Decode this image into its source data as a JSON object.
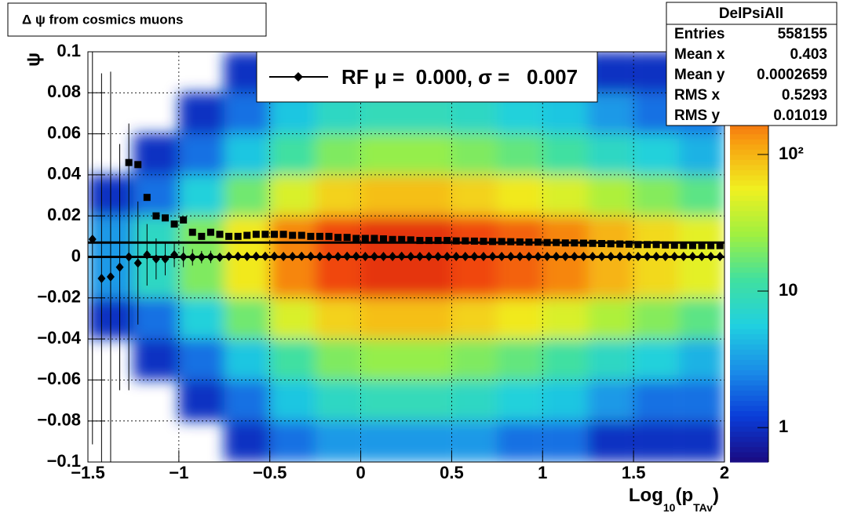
{
  "chart_data": {
    "type": "heatmap",
    "title": "Δ ψ from cosmics muons",
    "y_label": "ψ",
    "x_label": [
      "Log",
      "10",
      "(p",
      "TAv",
      ")"
    ],
    "xlim": [
      -1.5,
      2
    ],
    "ylim": [
      -0.1,
      0.1
    ],
    "xticks": [
      {
        "value": -1.5,
        "label": "−1.5"
      },
      {
        "value": -1,
        "label": "−1"
      },
      {
        "value": -0.5,
        "label": "−0.5"
      },
      0,
      0.5,
      1,
      1.5,
      2
    ],
    "yticks": [
      {
        "value": -0.1,
        "label": "−0.1"
      },
      {
        "value": -0.08,
        "label": "−0.08"
      },
      {
        "value": -0.06,
        "label": "−0.06"
      },
      {
        "value": -0.04,
        "label": "−0.04"
      },
      {
        "value": -0.02,
        "label": "−0.02"
      },
      0,
      0.02,
      0.04,
      0.06,
      0.08,
      0.1
    ],
    "grid": true,
    "zlim": [
      0.56,
      565
    ],
    "zlog": true,
    "zticks": [
      1,
      10,
      {
        "value": 100,
        "label": "10²"
      }
    ],
    "palette": [
      "#1a0a80",
      "#0a3cd8",
      "#1a8ce8",
      "#20d0e0",
      "#40e0a0",
      "#a0f040",
      "#f0f020",
      "#f8a010",
      "#f04010",
      "#b00000"
    ],
    "xbins": [
      -1.5,
      -1.25,
      -1,
      -0.75,
      -0.5,
      -0.25,
      0,
      0.25,
      0.5,
      0.75,
      1,
      1.25,
      1.5,
      1.75,
      2
    ],
    "ybins": [
      -0.1,
      -0.08,
      -0.06,
      -0.04,
      -0.02,
      0,
      0.02,
      0.04,
      0.06,
      0.08,
      0.1
    ],
    "z": [
      [
        0,
        0,
        0,
        1,
        3,
        3,
        1,
        0,
        0,
        0
      ],
      [
        0,
        0,
        1,
        2,
        8,
        8,
        2,
        1,
        0,
        0
      ],
      [
        0,
        1,
        2,
        6,
        20,
        20,
        6,
        2,
        1,
        0
      ],
      [
        1,
        2,
        5,
        18,
        60,
        60,
        18,
        5,
        2,
        1
      ],
      [
        2,
        5,
        12,
        45,
        150,
        150,
        45,
        12,
        5,
        2
      ],
      [
        3,
        8,
        20,
        75,
        250,
        250,
        75,
        20,
        8,
        3
      ],
      [
        3,
        9,
        24,
        90,
        300,
        300,
        90,
        24,
        9,
        3
      ],
      [
        3,
        9,
        24,
        90,
        300,
        300,
        90,
        24,
        9,
        3
      ],
      [
        3,
        8,
        20,
        75,
        250,
        250,
        75,
        20,
        8,
        3
      ],
      [
        2,
        6,
        16,
        60,
        200,
        200,
        60,
        16,
        6,
        2
      ],
      [
        2,
        5,
        12,
        45,
        150,
        150,
        45,
        12,
        5,
        2
      ],
      [
        1,
        3,
        8,
        30,
        100,
        100,
        30,
        8,
        3,
        1
      ],
      [
        1,
        2,
        6,
        21,
        70,
        70,
        21,
        6,
        2,
        1
      ],
      [
        1,
        2,
        4,
        15,
        50,
        50,
        15,
        4,
        2,
        1
      ]
    ],
    "x": [
      -1.475,
      -1.425,
      -1.375,
      -1.325,
      -1.275,
      -1.225,
      -1.175,
      -1.125,
      -1.075,
      -1.025,
      -0.975,
      -0.925,
      -0.875,
      -0.825,
      -0.775,
      -0.725,
      -0.675,
      -0.625,
      -0.575,
      -0.525,
      -0.475,
      -0.425,
      -0.375,
      -0.325,
      -0.275,
      -0.225,
      -0.175,
      -0.125,
      -0.075,
      -0.025,
      0.025,
      0.075,
      0.125,
      0.175,
      0.225,
      0.275,
      0.325,
      0.375,
      0.425,
      0.475,
      0.525,
      0.575,
      0.625,
      0.675,
      0.725,
      0.775,
      0.825,
      0.875,
      0.925,
      0.975,
      1.025,
      1.075,
      1.125,
      1.175,
      1.225,
      1.275,
      1.325,
      1.375,
      1.425,
      1.475,
      1.525,
      1.575,
      1.625,
      1.675,
      1.725,
      1.775,
      1.825,
      1.875,
      1.925,
      1.975
    ],
    "series": [
      {
        "marker": "diamond",
        "color": "#000000",
        "values": [
          0.0086,
          -0.0105,
          -0.0097,
          -0.005,
          0,
          -0.003,
          0.001,
          -0.001,
          -0.001,
          0.001,
          0,
          -0.0002,
          -0.0001,
          0,
          -0.0002,
          0.0003,
          0.0003,
          0.0002,
          0.0003,
          0.0003,
          0.0003,
          0.0002,
          0.0002,
          0.0003,
          0.0003,
          0.0002,
          0.0002,
          0.0002,
          0.0003,
          0.0003,
          0.0002,
          0.0002,
          0.0002,
          0.0002,
          0.0003,
          0.0002,
          0.0002,
          0.0002,
          0.0002,
          0.0002,
          0.0002,
          0.0002,
          0.0002,
          0.0002,
          0.0002,
          0.0002,
          0.0002,
          0.0002,
          0.0002,
          0.0002,
          0.0002,
          0.0002,
          0.0002,
          0.0002,
          0.0002,
          0.0002,
          0.0002,
          0.0002,
          0.0002,
          0.0002,
          0.0002,
          0.0002,
          0.0002,
          0.0002,
          0.0002,
          0.0002,
          0.0002,
          0.0002,
          0.0002,
          0.0002
        ],
        "errors": [
          0.1,
          0.1,
          0.1,
          0.06,
          0.065,
          0.03,
          0.015,
          0.01,
          0.008,
          0.006,
          0.005,
          0.004,
          0.003,
          0.003,
          0.002,
          0.002,
          0.002,
          0.0015,
          0.0015,
          0.001,
          0.0005,
          0.0005,
          0.0005,
          0.0005,
          0.0005,
          0.0005,
          0.0005,
          0.0005,
          0.0005,
          0.0005,
          0.0005,
          0.0005,
          0.0005,
          0.0005,
          0.0005,
          0.0005,
          0.0005,
          0.0005,
          0.0005,
          0.0005,
          0.0005,
          0.0005,
          0.0005,
          0.0005,
          0.0005,
          0.0005,
          0.0005,
          0.0005,
          0.0005,
          0.0005,
          0.0005,
          0.0005,
          0.0005,
          0.0005,
          0.0005,
          0.0005,
          0.0005,
          0.0005,
          0.0005,
          0.0005,
          0.0005,
          0.0005,
          0.0005,
          0.0005,
          0.0005,
          0.0005,
          0.0005,
          0.0005,
          0.0005,
          0.0005
        ]
      },
      {
        "marker": "square",
        "color": "#000000",
        "values": [
          null,
          null,
          null,
          null,
          0.046,
          0.045,
          0.029,
          0.02,
          0.019,
          0.016,
          0.018,
          0.012,
          0.01,
          0.012,
          0.011,
          0.01,
          0.01,
          0.0105,
          0.011,
          0.011,
          0.011,
          0.011,
          0.0105,
          0.0105,
          0.01,
          0.01,
          0.01,
          0.0095,
          0.0095,
          0.009,
          0.009,
          0.009,
          0.0088,
          0.0085,
          0.0085,
          0.0083,
          0.008,
          0.008,
          0.008,
          0.008,
          0.0078,
          0.0078,
          0.0077,
          0.0076,
          0.0075,
          0.0075,
          0.0074,
          0.0073,
          0.0072,
          0.0072,
          0.007,
          0.007,
          0.0068,
          0.0068,
          0.0067,
          0.0066,
          0.0065,
          0.0064,
          0.0063,
          0.0062,
          0.006,
          0.006,
          0.006,
          0.0058,
          0.0057,
          0.0056,
          0.0055,
          0.0055,
          0.0055,
          0.0055
        ]
      }
    ],
    "fit": {
      "mean": 0.0,
      "sigma": 0.007
    },
    "legend_label": "RF μ =  0.000, σ =   0.007",
    "stats": {
      "title": "DelPsiAll",
      "rows": [
        [
          "Entries",
          "558155"
        ],
        [
          "Mean x",
          "0.403"
        ],
        [
          "Mean y",
          "0.0002659"
        ],
        [
          "RMS x",
          "0.5293"
        ],
        [
          "RMS y",
          "0.01019"
        ]
      ]
    }
  }
}
